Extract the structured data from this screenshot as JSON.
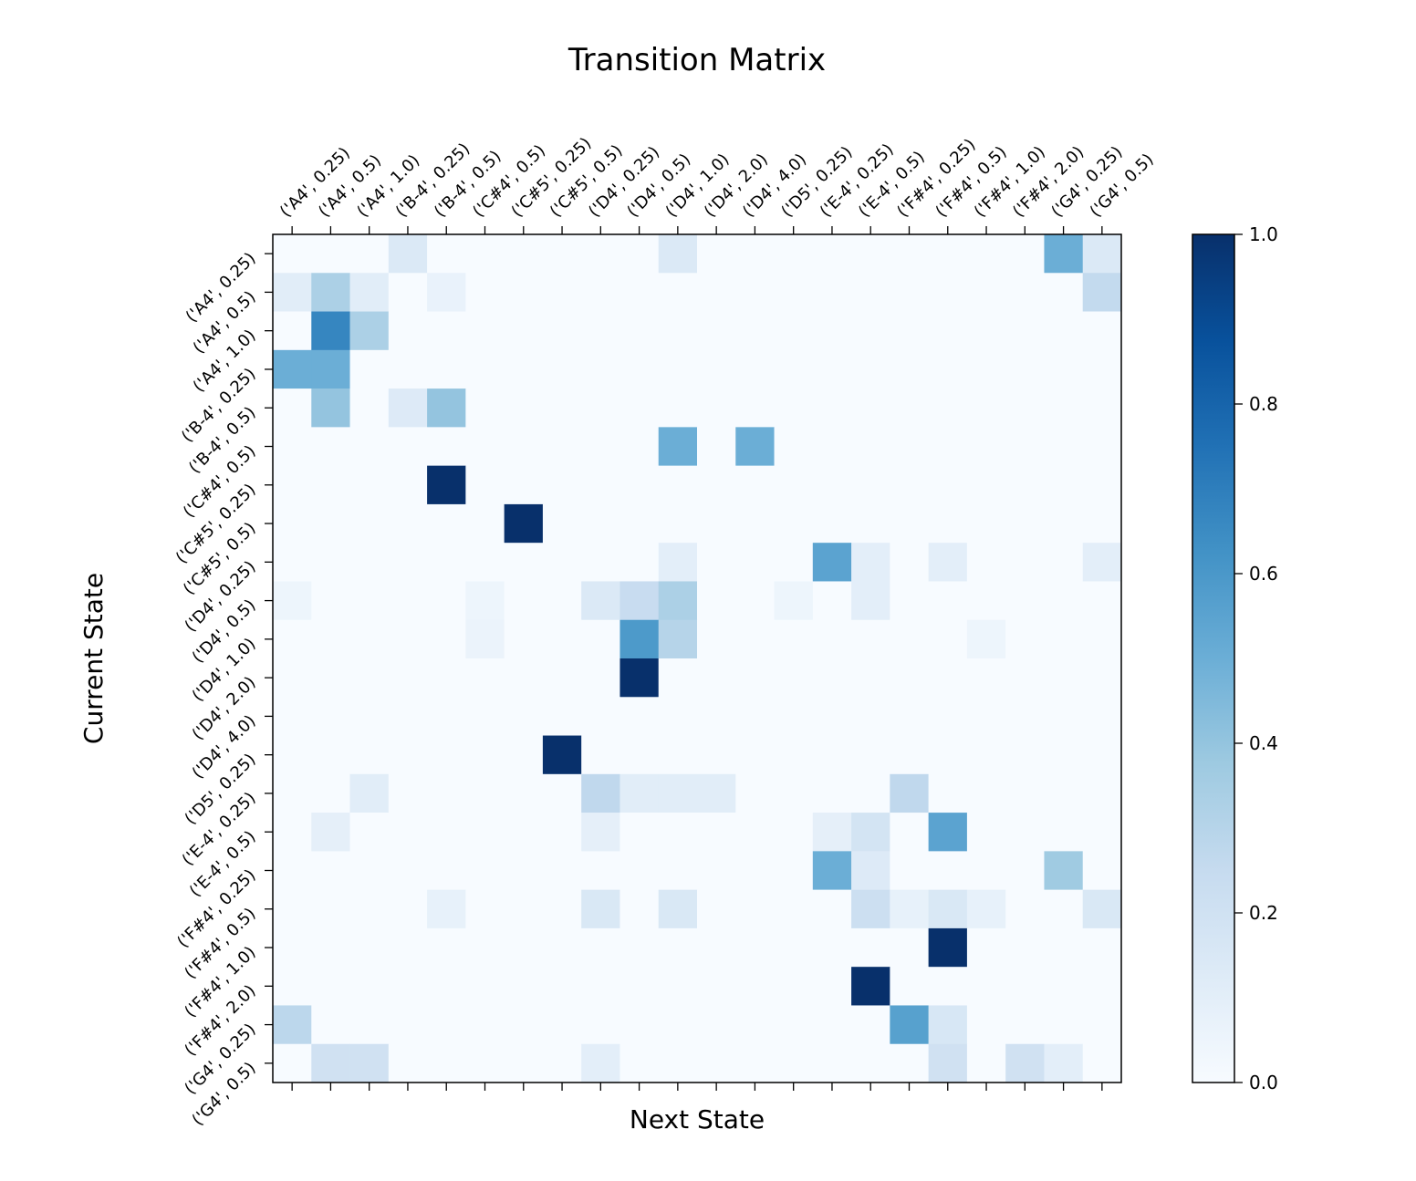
{
  "chart_data": {
    "type": "heatmap",
    "title": "Transition Matrix",
    "xlabel": "Next State",
    "ylabel": "Current State",
    "states": [
      "('A4', 0.25)",
      "('A4', 0.5)",
      "('A4', 1.0)",
      "('B-4', 0.25)",
      "('B-4', 0.5)",
      "('C#4', 0.5)",
      "('C#5', 0.25)",
      "('C#5', 0.5)",
      "('D4', 0.25)",
      "('D4', 0.5)",
      "('D4', 1.0)",
      "('D4', 2.0)",
      "('D4', 4.0)",
      "('D5', 0.25)",
      "('E-4', 0.25)",
      "('E-4', 0.5)",
      "('F#4', 0.25)",
      "('F#4', 0.5)",
      "('F#4', 1.0)",
      "('F#4', 2.0)",
      "('G4', 0.25)",
      "('G4', 0.5)"
    ],
    "matrix": [
      [
        0,
        0,
        0,
        0.14,
        0,
        0,
        0,
        0,
        0,
        0,
        0.14,
        0,
        0,
        0,
        0,
        0,
        0,
        0,
        0,
        0,
        0.5,
        0.14
      ],
      [
        0.11,
        0.33,
        0.11,
        0,
        0.07,
        0,
        0,
        0,
        0,
        0,
        0,
        0,
        0,
        0,
        0,
        0,
        0,
        0,
        0,
        0,
        0,
        0.26
      ],
      [
        0,
        0.67,
        0.33,
        0,
        0,
        0,
        0,
        0,
        0,
        0,
        0,
        0,
        0,
        0,
        0,
        0,
        0,
        0,
        0,
        0,
        0,
        0
      ],
      [
        0.5,
        0.5,
        0,
        0,
        0,
        0,
        0,
        0,
        0,
        0,
        0,
        0,
        0,
        0,
        0,
        0,
        0,
        0,
        0,
        0,
        0,
        0
      ],
      [
        0,
        0.4,
        0,
        0.13,
        0.4,
        0,
        0,
        0,
        0,
        0,
        0,
        0,
        0,
        0,
        0,
        0,
        0,
        0,
        0,
        0,
        0,
        0
      ],
      [
        0,
        0,
        0,
        0,
        0,
        0,
        0,
        0,
        0,
        0,
        0.5,
        0,
        0.5,
        0,
        0,
        0,
        0,
        0,
        0,
        0,
        0,
        0
      ],
      [
        0,
        0,
        0,
        0,
        1.0,
        0,
        0,
        0,
        0,
        0,
        0,
        0,
        0,
        0,
        0,
        0,
        0,
        0,
        0,
        0,
        0,
        0
      ],
      [
        0,
        0,
        0,
        0,
        0,
        0,
        1.0,
        0,
        0,
        0,
        0,
        0,
        0,
        0,
        0,
        0,
        0,
        0,
        0,
        0,
        0,
        0
      ],
      [
        0,
        0,
        0,
        0,
        0,
        0,
        0,
        0,
        0,
        0,
        0.1,
        0,
        0,
        0,
        0.55,
        0.1,
        0,
        0.1,
        0,
        0,
        0,
        0.1
      ],
      [
        0.05,
        0,
        0,
        0,
        0,
        0.05,
        0,
        0,
        0.14,
        0.24,
        0.33,
        0,
        0,
        0.05,
        0,
        0.1,
        0,
        0,
        0,
        0,
        0,
        0
      ],
      [
        0,
        0,
        0,
        0,
        0,
        0.06,
        0,
        0,
        0,
        0.59,
        0.3,
        0,
        0,
        0,
        0,
        0,
        0,
        0,
        0.05,
        0,
        0,
        0
      ],
      [
        0,
        0,
        0,
        0,
        0,
        0,
        0,
        0,
        0,
        1.0,
        0,
        0,
        0,
        0,
        0,
        0,
        0,
        0,
        0,
        0,
        0,
        0
      ],
      [
        0,
        0,
        0,
        0,
        0,
        0,
        0,
        0,
        0,
        0,
        0,
        0,
        0,
        0,
        0,
        0,
        0,
        0,
        0,
        0,
        0,
        0
      ],
      [
        0,
        0,
        0,
        0,
        0,
        0,
        0,
        1.0,
        0,
        0,
        0,
        0,
        0,
        0,
        0,
        0,
        0,
        0,
        0,
        0,
        0,
        0
      ],
      [
        0,
        0,
        0.11,
        0,
        0,
        0,
        0,
        0,
        0.27,
        0.11,
        0.11,
        0.11,
        0,
        0,
        0,
        0,
        0.27,
        0,
        0,
        0,
        0,
        0
      ],
      [
        0,
        0.09,
        0,
        0,
        0,
        0,
        0,
        0,
        0.09,
        0,
        0,
        0,
        0,
        0,
        0.09,
        0.18,
        0,
        0.55,
        0,
        0,
        0,
        0
      ],
      [
        0,
        0,
        0,
        0,
        0,
        0,
        0,
        0,
        0,
        0,
        0,
        0,
        0,
        0,
        0.5,
        0.13,
        0,
        0,
        0,
        0,
        0.37,
        0
      ],
      [
        0,
        0,
        0,
        0,
        0.08,
        0,
        0,
        0,
        0.15,
        0,
        0.15,
        0,
        0,
        0,
        0,
        0.22,
        0.08,
        0.15,
        0.08,
        0,
        0,
        0.15
      ],
      [
        0,
        0,
        0,
        0,
        0,
        0,
        0,
        0,
        0,
        0,
        0,
        0,
        0,
        0,
        0,
        0,
        0,
        1.0,
        0,
        0,
        0,
        0
      ],
      [
        0,
        0,
        0,
        0,
        0,
        0,
        0,
        0,
        0,
        0,
        0,
        0,
        0,
        0,
        0,
        1.0,
        0,
        0,
        0,
        0,
        0,
        0
      ],
      [
        0.28,
        0,
        0,
        0,
        0,
        0,
        0,
        0,
        0,
        0,
        0,
        0,
        0,
        0,
        0,
        0,
        0.56,
        0.16,
        0,
        0,
        0,
        0
      ],
      [
        0,
        0.2,
        0.2,
        0,
        0,
        0,
        0,
        0,
        0.1,
        0,
        0,
        0,
        0,
        0,
        0,
        0,
        0,
        0.2,
        0,
        0.2,
        0.1,
        0
      ]
    ],
    "colormap": "Blues",
    "colorbar": {
      "range": [
        0.0,
        1.0
      ],
      "ticks": [
        0.0,
        0.2,
        0.4,
        0.6,
        0.8,
        1.0
      ],
      "tick_labels": [
        "0.0",
        "0.2",
        "0.4",
        "0.6",
        "0.8",
        "1.0"
      ]
    },
    "x_ticks_position": "top",
    "grid": false
  }
}
